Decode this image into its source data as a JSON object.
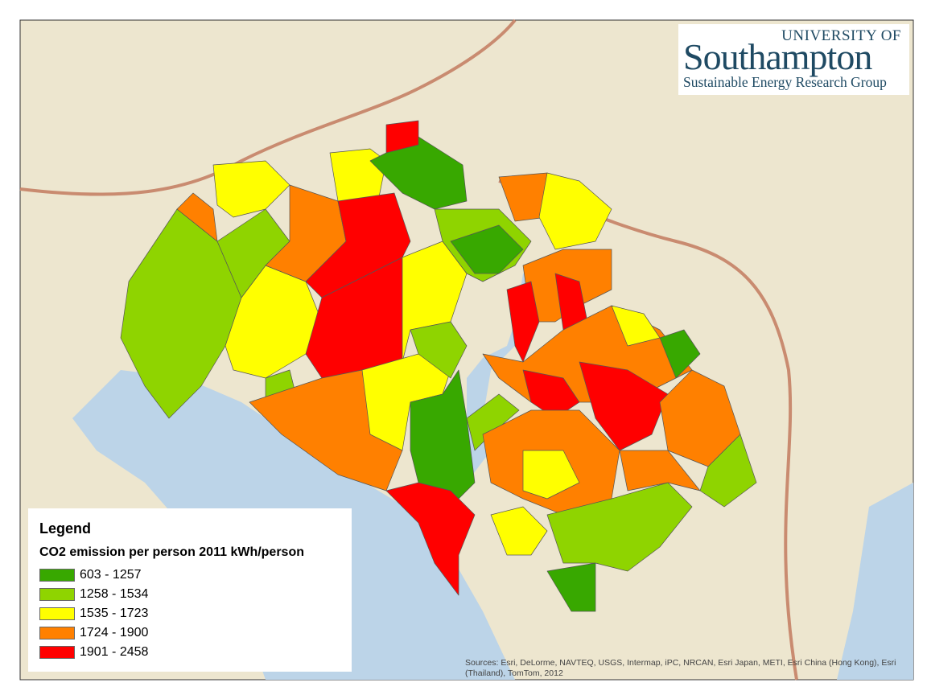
{
  "logo": {
    "line1": "UNIVERSITY OF",
    "line2": "Southampton",
    "line3": "Sustainable Energy Research Group"
  },
  "legend": {
    "title": "Legend",
    "subtitle": "CO2 emission per person 2011 kWh/person",
    "classes": [
      {
        "label": "603 - 1257",
        "color": "#38a800"
      },
      {
        "label": "1258 - 1534",
        "color": "#8fd400"
      },
      {
        "label": "1535 - 1723",
        "color": "#ffff00"
      },
      {
        "label": "1724 - 1900",
        "color": "#ff8000"
      },
      {
        "label": "1901 - 2458",
        "color": "#ff0000"
      }
    ]
  },
  "sources": [
    "Sources: Esri, DeLorme, NAVTEQ, USGS, Intermap, iPC, NRCAN, Esri Japan, METI, Esri China (Hong Kong), Esri",
    "(Thailand), TomTom, 2012"
  ]
}
